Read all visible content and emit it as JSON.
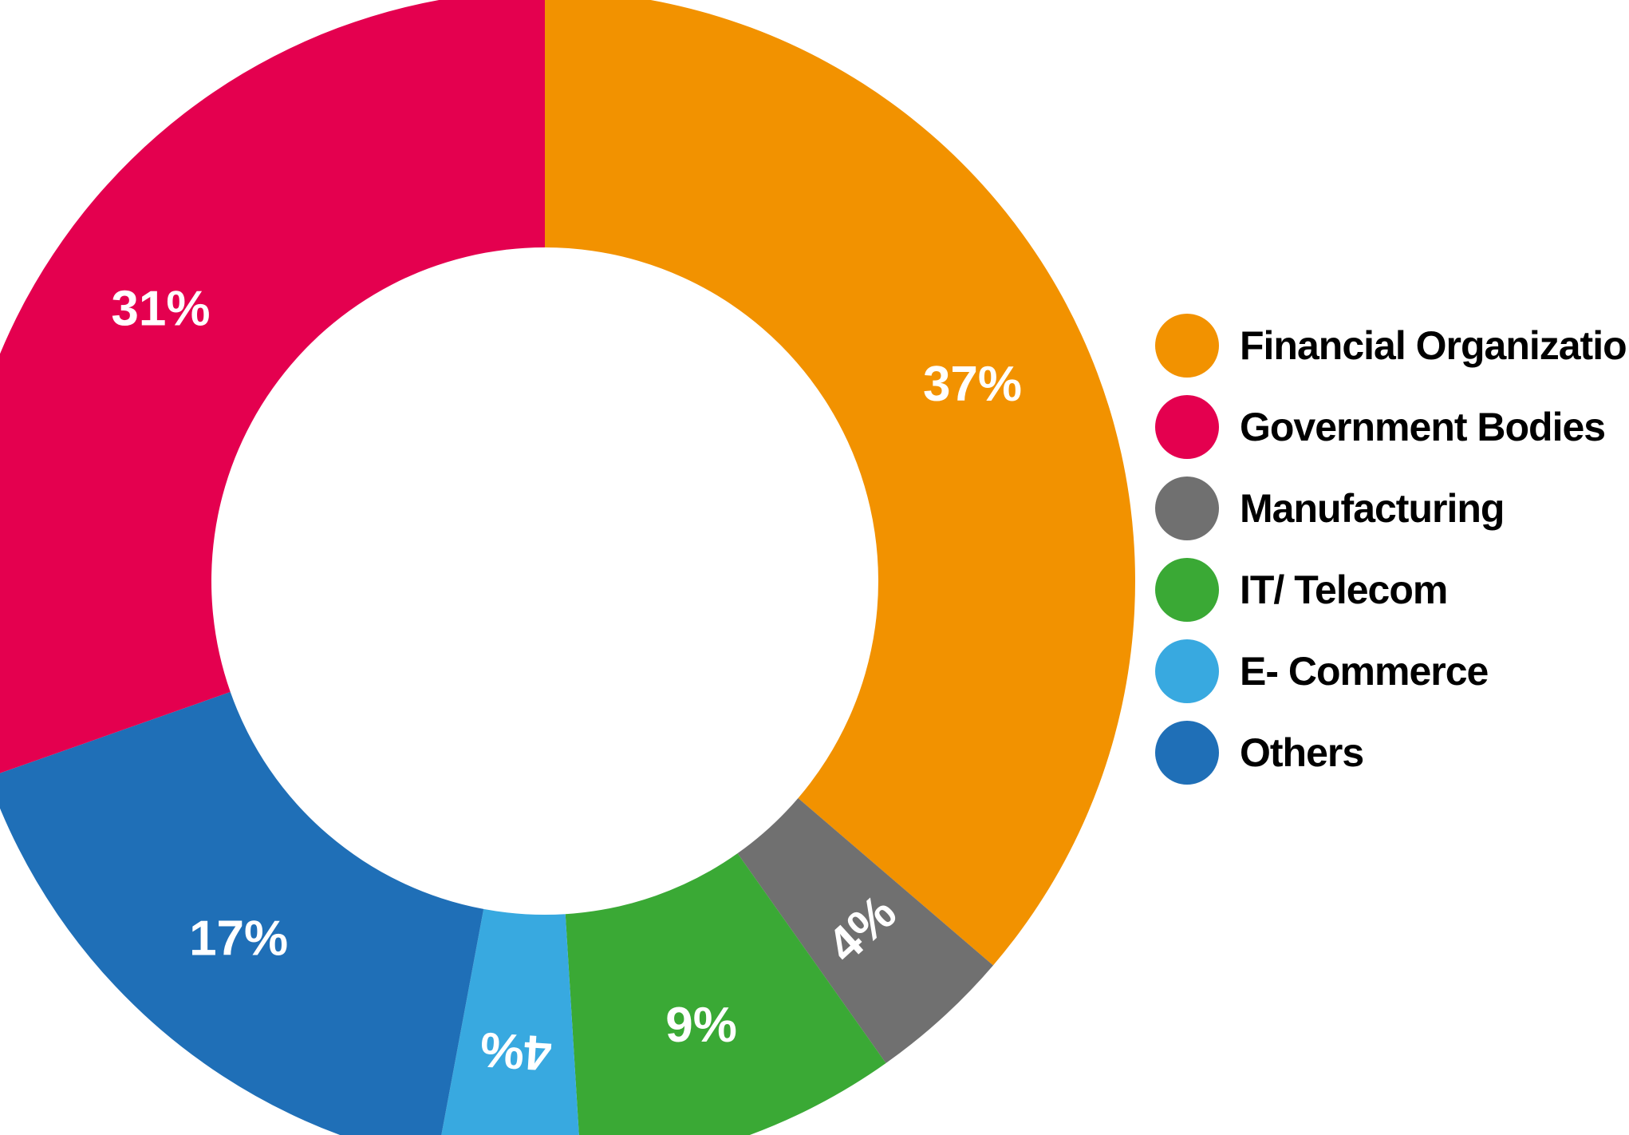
{
  "chart_data": {
    "type": "pie",
    "variant": "donut",
    "title": "",
    "slices": [
      {
        "label": "Financial Organizations",
        "value": 37,
        "display": "37%",
        "color": "#f29200"
      },
      {
        "label": "Manufacturing",
        "value": 4,
        "display": "4%",
        "color": "#707070"
      },
      {
        "label": "IT/ Telecom",
        "value": 9,
        "display": "9%",
        "color": "#3aa935"
      },
      {
        "label": "E- Commerce",
        "value": 4,
        "display": "4%",
        "color": "#38a9e0"
      },
      {
        "label": "Others",
        "value": 17,
        "display": "17%",
        "color": "#1f6fb7"
      },
      {
        "label": "Government Bodies",
        "value": 31,
        "display": "31%",
        "color": "#e4004f"
      }
    ],
    "legend": {
      "placement": "right",
      "items": [
        {
          "label": "Financial Organizations",
          "color": "#f29200"
        },
        {
          "label": "Government Bodies",
          "color": "#e4004f"
        },
        {
          "label": "Manufacturing",
          "color": "#707070"
        },
        {
          "label": "IT/ Telecom",
          "color": "#3aa935"
        },
        {
          "label": "E- Commerce",
          "color": "#38a9e0"
        },
        {
          "label": "Others",
          "color": "#1f6fb7"
        }
      ]
    }
  }
}
